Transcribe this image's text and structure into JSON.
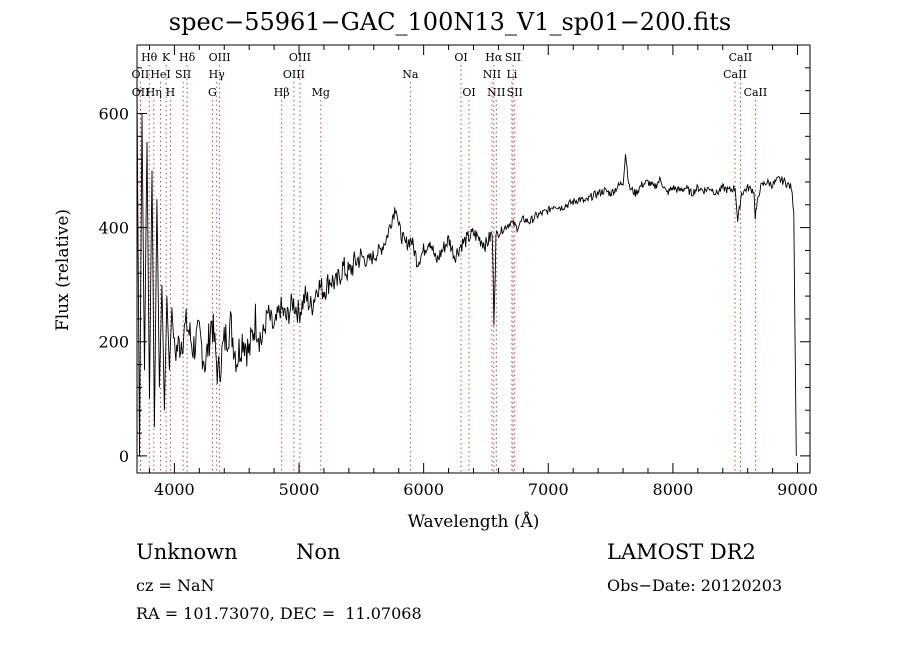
{
  "title": "spec−55961−GAC_100N13_V1_sp01−200.fits",
  "info": {
    "class": "Unknown",
    "subclass": "Non",
    "survey": "LAMOST DR2",
    "cz": "cz = NaN",
    "obs_date": "Obs−Date: 20120203",
    "radec": "RA = 101.73070, DEC =  11.07068"
  },
  "chart_data": {
    "type": "line",
    "xlabel": "Wavelength (Å)",
    "ylabel": "Flux (relative)",
    "xlim": [
      3700,
      9100
    ],
    "ylim": [
      -30,
      720
    ],
    "x_ticks": [
      4000,
      5000,
      6000,
      7000,
      8000,
      9000
    ],
    "y_ticks": [
      0,
      200,
      400,
      600
    ],
    "grid": false,
    "series": [
      {
        "x": [
          3700,
          3720,
          3740,
          3760,
          3780,
          3800,
          3820,
          3840,
          3860,
          3880,
          3900,
          3920,
          3940,
          3960,
          3980,
          4000,
          4050,
          4100,
          4150,
          4200,
          4250,
          4300,
          4350,
          4400,
          4450,
          4500,
          4550,
          4600,
          4650,
          4700,
          4750,
          4800,
          4850,
          4900,
          4950,
          5000,
          5050,
          5100,
          5150,
          5200,
          5250,
          5300,
          5350,
          5400,
          5450,
          5500,
          5550,
          5600,
          5650,
          5700,
          5750,
          5780,
          5800,
          5850,
          5900,
          5950,
          6000,
          6050,
          6100,
          6150,
          6200,
          6250,
          6300,
          6350,
          6400,
          6450,
          6500,
          6550,
          6564,
          6580,
          6600,
          6650,
          6700,
          6750,
          6800,
          6850,
          6900,
          6950,
          7000,
          7050,
          7100,
          7150,
          7200,
          7250,
          7300,
          7350,
          7400,
          7450,
          7500,
          7550,
          7600,
          7620,
          7650,
          7700,
          7750,
          7800,
          7850,
          7900,
          7950,
          8000,
          8050,
          8100,
          8150,
          8200,
          8250,
          8300,
          8350,
          8400,
          8450,
          8500,
          8520,
          8550,
          8600,
          8650,
          8660,
          8700,
          8750,
          8800,
          8850,
          8900,
          8950,
          8970,
          8980,
          8990
        ],
        "y": [
          650,
          0,
          600,
          150,
          550,
          100,
          500,
          50,
          450,
          120,
          300,
          80,
          280,
          150,
          260,
          180,
          200,
          230,
          190,
          210,
          160,
          240,
          140,
          200,
          230,
          170,
          210,
          180,
          240,
          200,
          250,
          220,
          260,
          240,
          270,
          250,
          280,
          260,
          300,
          290,
          310,
          300,
          330,
          320,
          340,
          350,
          340,
          350,
          360,
          380,
          420,
          440,
          400,
          370,
          380,
          340,
          360,
          380,
          340,
          360,
          380,
          350,
          370,
          380,
          390,
          380,
          370,
          390,
          240,
          380,
          390,
          400,
          410,
          400,
          415,
          410,
          420,
          425,
          430,
          440,
          435,
          440,
          445,
          450,
          445,
          455,
          460,
          465,
          460,
          470,
          480,
          530,
          470,
          460,
          475,
          480,
          470,
          485,
          460,
          470,
          465,
          470,
          460,
          470,
          465,
          470,
          460,
          470,
          465,
          470,
          410,
          460,
          470,
          465,
          420,
          470,
          480,
          475,
          485,
          480,
          470,
          430,
          210,
          0
        ]
      }
    ],
    "lines": [
      {
        "label": "Hθ",
        "wavelength": 3798,
        "row": 1
      },
      {
        "label": "K",
        "wavelength": 3934,
        "row": 1
      },
      {
        "label": "Hδ",
        "wavelength": 4102,
        "row": 1
      },
      {
        "label": "OIII",
        "wavelength": 4363,
        "row": 1
      },
      {
        "label": "OIII",
        "wavelength": 5007,
        "row": 1
      },
      {
        "label": "OI",
        "wavelength": 6300,
        "row": 1
      },
      {
        "label": "Hα",
        "wavelength": 6563,
        "row": 1
      },
      {
        "label": "SII",
        "wavelength": 6717,
        "row": 1
      },
      {
        "label": "CaII",
        "wavelength": 8542,
        "row": 1
      },
      {
        "label": "OII",
        "wavelength": 3727,
        "row": 2
      },
      {
        "label": "HeI",
        "wavelength": 3889,
        "row": 2
      },
      {
        "label": "SII",
        "wavelength": 4070,
        "row": 2
      },
      {
        "label": "Hγ",
        "wavelength": 4340,
        "row": 2
      },
      {
        "label": "OIII",
        "wavelength": 4959,
        "row": 2
      },
      {
        "label": "Na",
        "wavelength": 5893,
        "row": 2
      },
      {
        "label": "NII",
        "wavelength": 6548,
        "row": 2
      },
      {
        "label": "Li",
        "wavelength": 6708,
        "row": 2
      },
      {
        "label": "CaII",
        "wavelength": 8498,
        "row": 2
      },
      {
        "label": "OII",
        "wavelength": 3729,
        "row": 3
      },
      {
        "label": "Hη",
        "wavelength": 3835,
        "row": 3
      },
      {
        "label": "H",
        "wavelength": 3968,
        "row": 3
      },
      {
        "label": "G",
        "wavelength": 4305,
        "row": 3
      },
      {
        "label": "Hβ",
        "wavelength": 4861,
        "row": 3
      },
      {
        "label": "Mg",
        "wavelength": 5175,
        "row": 3
      },
      {
        "label": "OI",
        "wavelength": 6364,
        "row": 3
      },
      {
        "label": "NII",
        "wavelength": 6583,
        "row": 3
      },
      {
        "label": "SII",
        "wavelength": 6731,
        "row": 3
      },
      {
        "label": "CaII",
        "wavelength": 8662,
        "row": 3
      }
    ]
  }
}
